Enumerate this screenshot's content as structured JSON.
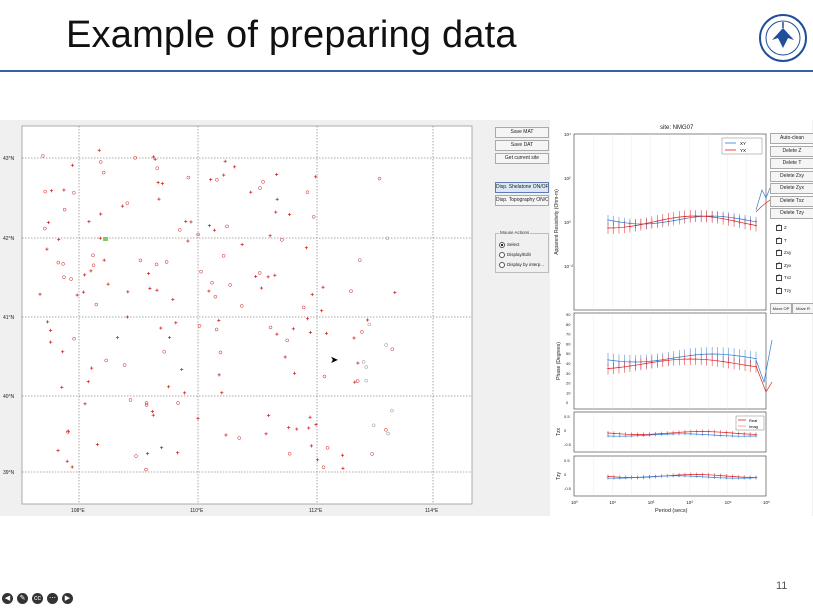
{
  "slide": {
    "title": "Example of preparing data",
    "page_number": "11",
    "rule_color": "#3a5ea8",
    "logo_text": "LANZHOU UNIVERSITY"
  },
  "left_panel": {
    "lat_labels": [
      "43°N",
      "42°N",
      "41°N",
      "40°N",
      "39°N"
    ],
    "lon_labels": [
      "108°E",
      "110°E",
      "112°E",
      "114°E"
    ]
  },
  "buttons": {
    "save_mat": "Save MAT",
    "save_dat": "Save DAT",
    "get_current_site": "Get current site",
    "disp_shelatone": "Disp. Shelatone ON/OFF",
    "disp_topography": "Disp. Topography ON/OFF"
  },
  "mouse_actions": {
    "title": "Mouse Actions",
    "options": [
      "Select",
      "Display/Edit",
      "Display by interp..."
    ],
    "selected": "Select"
  },
  "right_buttons": [
    "Auto-clean",
    "Delete Z",
    "Delete T",
    "Delete Zxy",
    "Delete Zyx",
    "Delete Txz",
    "Delete Tzy"
  ],
  "checkboxes": [
    "Z",
    "T",
    "Zxy",
    "Zyx",
    "Txz",
    "Tzy"
  ],
  "move_buttons": [
    "Move OP",
    "Move R"
  ],
  "plot": {
    "site_title": "site: NMG07",
    "rho_ylabel": "Apparent Resistivity (Ohm-m)",
    "phase_ylabel": "Phase (Degrees)",
    "tzx_ylabel": "Tzx",
    "tzy_ylabel": "Tzy",
    "xlabel": "Period (secs)",
    "legend_rho": [
      "XY",
      "YX"
    ],
    "legend_tip": [
      "Real",
      "Imag"
    ],
    "rho_ticks": [
      "10⁴",
      "10²",
      "10⁰",
      "10⁻²"
    ],
    "phase_ticks": [
      "90",
      "80",
      "70",
      "60",
      "50",
      "40",
      "30",
      "20",
      "10",
      "0"
    ],
    "tip_ticks": [
      "0.5",
      "0",
      "-0.5"
    ],
    "x_ticks": [
      "10⁰",
      "10¹",
      "10²",
      "10³",
      "10⁴",
      "10⁵"
    ],
    "xy_color": "#2f7fd6",
    "yx_color": "#e02020"
  }
}
